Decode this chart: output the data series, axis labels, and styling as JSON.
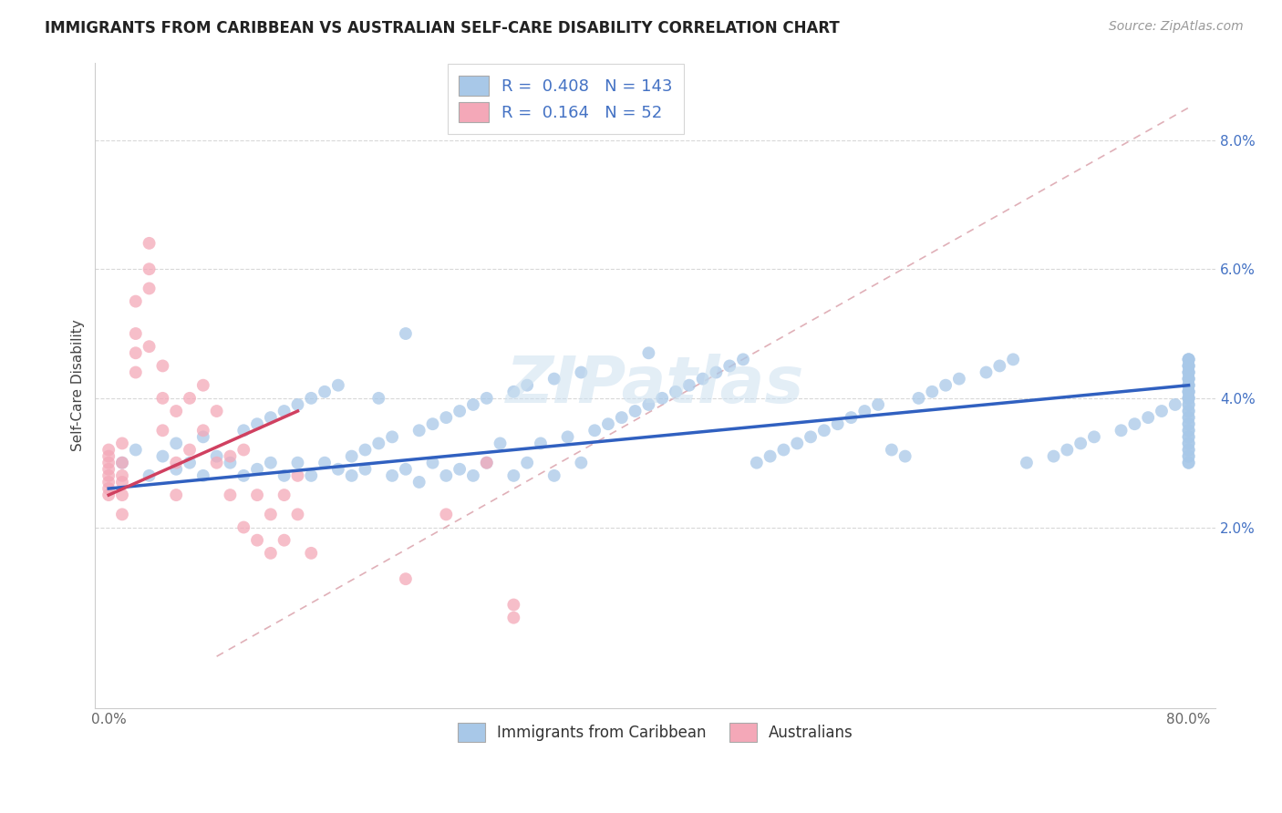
{
  "title": "IMMIGRANTS FROM CARIBBEAN VS AUSTRALIAN SELF-CARE DISABILITY CORRELATION CHART",
  "source": "Source: ZipAtlas.com",
  "ylabel": "Self-Care Disability",
  "xlim": [
    -0.01,
    0.82
  ],
  "ylim": [
    -0.008,
    0.092
  ],
  "y_ticks": [
    0.02,
    0.04,
    0.06,
    0.08
  ],
  "y_tick_labels": [
    "2.0%",
    "4.0%",
    "6.0%",
    "8.0%"
  ],
  "x_ticks": [
    0.0,
    0.1,
    0.2,
    0.3,
    0.4,
    0.5,
    0.6,
    0.7,
    0.8
  ],
  "x_tick_labels": [
    "0.0%",
    "",
    "",
    "",
    "",
    "",
    "",
    "",
    "80.0%"
  ],
  "blue_R": 0.408,
  "blue_N": 143,
  "pink_R": 0.164,
  "pink_N": 52,
  "blue_color": "#a8c8e8",
  "pink_color": "#f4a8b8",
  "blue_line_color": "#3060c0",
  "pink_line_color": "#d04060",
  "ref_line_color": "#e0b0b8",
  "legend_label_blue": "Immigrants from Caribbean",
  "legend_label_pink": "Australians",
  "blue_line_x0": 0.0,
  "blue_line_y0": 0.026,
  "blue_line_x1": 0.8,
  "blue_line_y1": 0.042,
  "pink_line_x0": 0.0,
  "pink_line_y0": 0.025,
  "pink_line_x1": 0.14,
  "pink_line_y1": 0.038,
  "ref_line_x0": 0.08,
  "ref_line_y0": 0.0,
  "ref_line_x1": 0.8,
  "ref_line_y1": 0.085,
  "blue_x": [
    0.01,
    0.02,
    0.03,
    0.04,
    0.05,
    0.05,
    0.06,
    0.07,
    0.07,
    0.08,
    0.09,
    0.1,
    0.1,
    0.11,
    0.11,
    0.12,
    0.12,
    0.13,
    0.13,
    0.14,
    0.14,
    0.15,
    0.15,
    0.16,
    0.16,
    0.17,
    0.17,
    0.18,
    0.18,
    0.19,
    0.19,
    0.2,
    0.2,
    0.21,
    0.21,
    0.22,
    0.22,
    0.23,
    0.23,
    0.24,
    0.24,
    0.25,
    0.25,
    0.26,
    0.26,
    0.27,
    0.27,
    0.28,
    0.28,
    0.29,
    0.3,
    0.3,
    0.31,
    0.31,
    0.32,
    0.33,
    0.33,
    0.34,
    0.35,
    0.35,
    0.36,
    0.37,
    0.38,
    0.39,
    0.4,
    0.4,
    0.41,
    0.42,
    0.43,
    0.44,
    0.45,
    0.46,
    0.47,
    0.48,
    0.49,
    0.5,
    0.51,
    0.52,
    0.53,
    0.54,
    0.55,
    0.56,
    0.57,
    0.58,
    0.59,
    0.6,
    0.61,
    0.62,
    0.63,
    0.65,
    0.66,
    0.67,
    0.68,
    0.7,
    0.71,
    0.72,
    0.73,
    0.75,
    0.76,
    0.77,
    0.78,
    0.79,
    0.8,
    0.8,
    0.8,
    0.8,
    0.8,
    0.8,
    0.8,
    0.8,
    0.8,
    0.8,
    0.8,
    0.8,
    0.8,
    0.8,
    0.8,
    0.8,
    0.8,
    0.8,
    0.8,
    0.8,
    0.8,
    0.8,
    0.8,
    0.8,
    0.8,
    0.8,
    0.8,
    0.8,
    0.8,
    0.8,
    0.8,
    0.8,
    0.8,
    0.8,
    0.8,
    0.8,
    0.8,
    0.8,
    0.8,
    0.8,
    0.8
  ],
  "blue_y": [
    0.03,
    0.032,
    0.028,
    0.031,
    0.033,
    0.029,
    0.03,
    0.034,
    0.028,
    0.031,
    0.03,
    0.035,
    0.028,
    0.036,
    0.029,
    0.037,
    0.03,
    0.038,
    0.028,
    0.039,
    0.03,
    0.04,
    0.028,
    0.041,
    0.03,
    0.042,
    0.029,
    0.031,
    0.028,
    0.032,
    0.029,
    0.033,
    0.04,
    0.034,
    0.028,
    0.05,
    0.029,
    0.035,
    0.027,
    0.036,
    0.03,
    0.037,
    0.028,
    0.038,
    0.029,
    0.039,
    0.028,
    0.04,
    0.03,
    0.033,
    0.041,
    0.028,
    0.042,
    0.03,
    0.033,
    0.043,
    0.028,
    0.034,
    0.044,
    0.03,
    0.035,
    0.036,
    0.037,
    0.038,
    0.039,
    0.047,
    0.04,
    0.041,
    0.042,
    0.043,
    0.044,
    0.045,
    0.046,
    0.03,
    0.031,
    0.032,
    0.033,
    0.034,
    0.035,
    0.036,
    0.037,
    0.038,
    0.039,
    0.032,
    0.031,
    0.04,
    0.041,
    0.042,
    0.043,
    0.044,
    0.045,
    0.046,
    0.03,
    0.031,
    0.032,
    0.033,
    0.034,
    0.035,
    0.036,
    0.037,
    0.038,
    0.039,
    0.04,
    0.041,
    0.042,
    0.043,
    0.044,
    0.045,
    0.046,
    0.03,
    0.031,
    0.032,
    0.033,
    0.034,
    0.035,
    0.036,
    0.037,
    0.038,
    0.039,
    0.04,
    0.041,
    0.042,
    0.043,
    0.044,
    0.045,
    0.046,
    0.03,
    0.031,
    0.032,
    0.033,
    0.034,
    0.035,
    0.036,
    0.037,
    0.038,
    0.039,
    0.04,
    0.041,
    0.042,
    0.043,
    0.044,
    0.045,
    0.046
  ],
  "pink_x": [
    0.0,
    0.0,
    0.0,
    0.0,
    0.0,
    0.0,
    0.0,
    0.0,
    0.01,
    0.01,
    0.01,
    0.01,
    0.01,
    0.01,
    0.02,
    0.02,
    0.02,
    0.02,
    0.03,
    0.03,
    0.03,
    0.03,
    0.04,
    0.04,
    0.04,
    0.05,
    0.05,
    0.05,
    0.06,
    0.06,
    0.07,
    0.07,
    0.08,
    0.08,
    0.09,
    0.09,
    0.1,
    0.1,
    0.11,
    0.11,
    0.12,
    0.12,
    0.13,
    0.13,
    0.14,
    0.14,
    0.15,
    0.22,
    0.25,
    0.28,
    0.3,
    0.3
  ],
  "pink_y": [
    0.03,
    0.028,
    0.027,
    0.032,
    0.026,
    0.031,
    0.025,
    0.029,
    0.03,
    0.028,
    0.025,
    0.033,
    0.027,
    0.022,
    0.05,
    0.047,
    0.044,
    0.055,
    0.06,
    0.064,
    0.048,
    0.057,
    0.035,
    0.04,
    0.045,
    0.03,
    0.038,
    0.025,
    0.032,
    0.04,
    0.035,
    0.042,
    0.03,
    0.038,
    0.031,
    0.025,
    0.032,
    0.02,
    0.025,
    0.018,
    0.022,
    0.016,
    0.018,
    0.025,
    0.022,
    0.028,
    0.016,
    0.012,
    0.022,
    0.03,
    0.008,
    0.006
  ]
}
